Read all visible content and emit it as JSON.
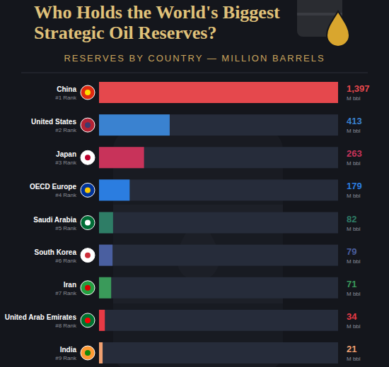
{
  "chart_data": {
    "type": "bar",
    "orientation": "horizontal",
    "title": "Who Holds the World's Biggest Strategic Oil Reserves?",
    "subtitle": "RESERVES BY COUNTRY — MILLION BARRELS",
    "categories": [
      "China",
      "United States",
      "Japan",
      "OECD Europe",
      "Saudi Arabia",
      "South Korea",
      "Iran",
      "United Arab Emirates",
      "India"
    ],
    "rank_labels": [
      "#1 Rank",
      "#2 Rank",
      "#3 Rank",
      "#4 Rank",
      "#5 Rank",
      "#6 Rank",
      "#7 Rank",
      "#8 Rank",
      "#9 Rank"
    ],
    "values": [
      1397,
      413,
      263,
      179,
      82,
      79,
      71,
      34,
      21
    ],
    "value_labels": [
      "1,397",
      "413",
      "263",
      "179",
      "82",
      "79",
      "71",
      "34",
      "21"
    ],
    "unit_label": "M bbl",
    "colors": [
      "#e5484d",
      "#3a82d0",
      "#c8335a",
      "#2b7de0",
      "#2e7d66",
      "#4a5fa0",
      "#3a9a5a",
      "#e83a45",
      "#f0a070"
    ],
    "xlim": [
      0,
      1397
    ],
    "data_labels": true,
    "tick_labels": false,
    "grid": false
  }
}
